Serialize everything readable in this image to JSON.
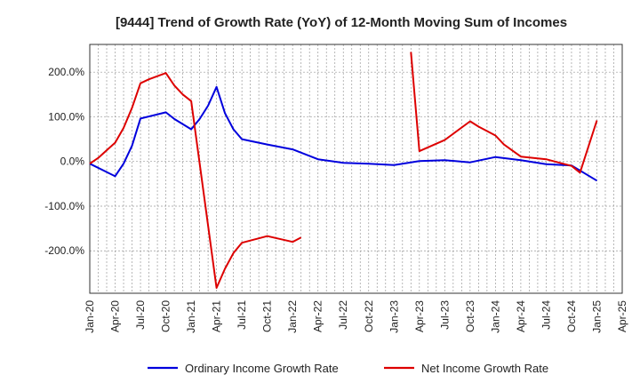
{
  "chart_data": {
    "type": "line",
    "title": "[9444]  Trend of Growth Rate (YoY) of 12-Month Moving Sum of Incomes",
    "xlabel": "",
    "ylabel": "",
    "ylim": [
      -295,
      262
    ],
    "x_range": [
      "2020-01",
      "2025-04"
    ],
    "grid": "dashed",
    "legend_position": "bottom",
    "y_ticks": [
      {
        "value": 200,
        "label": "200.0%"
      },
      {
        "value": 100,
        "label": "100.0%"
      },
      {
        "value": 0,
        "label": "0.0%"
      },
      {
        "value": -100,
        "label": "-100.0%"
      },
      {
        "value": -200,
        "label": "-200.0%"
      }
    ],
    "x_ticks": [
      "Jan-20",
      "Apr-20",
      "Jul-20",
      "Oct-20",
      "Jan-21",
      "Apr-21",
      "Jul-21",
      "Oct-21",
      "Jan-22",
      "Apr-22",
      "Jul-22",
      "Oct-22",
      "Jan-23",
      "Apr-23",
      "Jul-23",
      "Oct-23",
      "Jan-24",
      "Apr-24",
      "Jul-24",
      "Oct-24",
      "Jan-25",
      "Apr-25"
    ],
    "series": [
      {
        "name": "Ordinary Income Growth Rate",
        "color": "#0000dd",
        "segments": [
          [
            {
              "x": "2020-01",
              "y": -5
            },
            {
              "x": "2020-04",
              "y": -33
            },
            {
              "x": "2020-05",
              "y": -5
            },
            {
              "x": "2020-06",
              "y": 35
            },
            {
              "x": "2020-07",
              "y": 96
            },
            {
              "x": "2020-10",
              "y": 110
            },
            {
              "x": "2020-11",
              "y": 95
            },
            {
              "x": "2021-01",
              "y": 72
            },
            {
              "x": "2021-02",
              "y": 95
            },
            {
              "x": "2021-03",
              "y": 125
            },
            {
              "x": "2021-04",
              "y": 167
            },
            {
              "x": "2021-05",
              "y": 108
            },
            {
              "x": "2021-06",
              "y": 72
            },
            {
              "x": "2021-07",
              "y": 50
            },
            {
              "x": "2021-10",
              "y": 38
            },
            {
              "x": "2022-01",
              "y": 27
            },
            {
              "x": "2022-04",
              "y": 5
            },
            {
              "x": "2022-07",
              "y": -3
            },
            {
              "x": "2022-10",
              "y": -5
            },
            {
              "x": "2023-01",
              "y": -8
            },
            {
              "x": "2023-04",
              "y": 1
            },
            {
              "x": "2023-07",
              "y": 3
            },
            {
              "x": "2023-10",
              "y": -2
            },
            {
              "x": "2024-01",
              "y": 10
            },
            {
              "x": "2024-04",
              "y": 3
            },
            {
              "x": "2024-07",
              "y": -6
            },
            {
              "x": "2024-10",
              "y": -9
            },
            {
              "x": "2025-01",
              "y": -43
            }
          ]
        ]
      },
      {
        "name": "Net Income Growth Rate",
        "color": "#dd0000",
        "segments": [
          [
            {
              "x": "2020-01",
              "y": -5
            },
            {
              "x": "2020-02",
              "y": 8
            },
            {
              "x": "2020-03",
              "y": 25
            },
            {
              "x": "2020-04",
              "y": 42
            },
            {
              "x": "2020-05",
              "y": 75
            },
            {
              "x": "2020-06",
              "y": 120
            },
            {
              "x": "2020-07",
              "y": 175
            },
            {
              "x": "2020-08",
              "y": 184
            },
            {
              "x": "2020-10",
              "y": 198
            },
            {
              "x": "2020-11",
              "y": 170
            },
            {
              "x": "2020-12",
              "y": 150
            },
            {
              "x": "2021-01",
              "y": 135
            },
            {
              "x": "2021-04",
              "y": -283
            },
            {
              "x": "2021-05",
              "y": -240
            },
            {
              "x": "2021-06",
              "y": -205
            },
            {
              "x": "2021-07",
              "y": -182
            },
            {
              "x": "2021-10",
              "y": -167
            },
            {
              "x": "2022-01",
              "y": -180
            },
            {
              "x": "2022-02",
              "y": -170
            }
          ],
          [
            {
              "x": "2023-03",
              "y": 245
            },
            {
              "x": "2023-04",
              "y": 23
            },
            {
              "x": "2023-07",
              "y": 48
            },
            {
              "x": "2023-10",
              "y": 90
            },
            {
              "x": "2023-11",
              "y": 78
            },
            {
              "x": "2024-01",
              "y": 58
            },
            {
              "x": "2024-02",
              "y": 38
            },
            {
              "x": "2024-04",
              "y": 11
            },
            {
              "x": "2024-07",
              "y": 5
            },
            {
              "x": "2024-10",
              "y": -10
            },
            {
              "x": "2024-11",
              "y": -25
            },
            {
              "x": "2025-01",
              "y": 92
            }
          ]
        ]
      }
    ]
  }
}
